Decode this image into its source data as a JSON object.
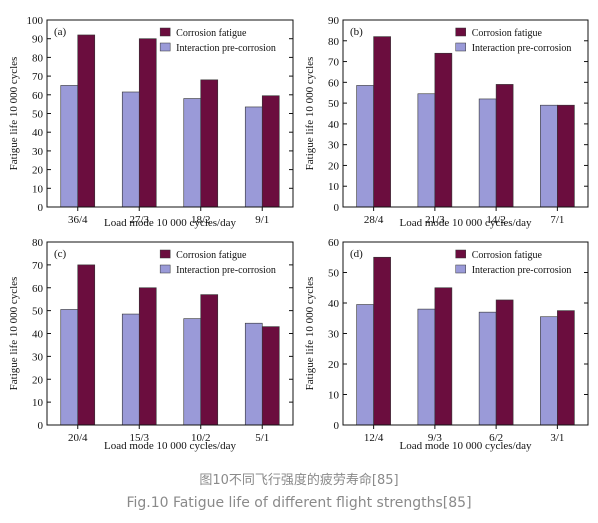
{
  "caption_cn": "图10不同飞行强度的疲劳寿命[85]",
  "caption_en": "Fig.10 Fatigue life of different flight strengths[85]",
  "colors": {
    "corrosion_fatigue": "#6b0d3e",
    "interaction_pre_corrosion": "#9a9ad8"
  },
  "chart_data": [
    {
      "type": "bar",
      "panel": "(a)",
      "xlabel": "Load mode 10 000 cycles/day",
      "ylabel": "Fatigue life 10 000 cycles",
      "ylim": [
        0,
        100
      ],
      "yticks": [
        0,
        10,
        20,
        30,
        40,
        50,
        60,
        70,
        80,
        90,
        100
      ],
      "categories": [
        "36/4",
        "27/3",
        "18/2",
        "9/1"
      ],
      "legend_position": "top-right",
      "series": [
        {
          "name": "Interaction pre-corrosion",
          "values": [
            65,
            61.5,
            58,
            53.5
          ]
        },
        {
          "name": "Corrosion fatigue",
          "values": [
            92,
            90,
            68,
            59.5
          ]
        }
      ]
    },
    {
      "type": "bar",
      "panel": "(b)",
      "xlabel": "Load mode 10 000 cycles/day",
      "ylabel": "Fatigue life 10 000 cycles",
      "ylim": [
        0,
        90
      ],
      "yticks": [
        0,
        10,
        20,
        30,
        40,
        50,
        60,
        70,
        80,
        90
      ],
      "categories": [
        "28/4",
        "21/3",
        "14/2",
        "7/1"
      ],
      "legend_position": "top-right",
      "series": [
        {
          "name": "Interaction pre-corrosion",
          "values": [
            58.5,
            54.5,
            52,
            49
          ]
        },
        {
          "name": "Corrosion fatigue",
          "values": [
            82,
            74,
            59,
            49
          ]
        }
      ]
    },
    {
      "type": "bar",
      "panel": "(c)",
      "xlabel": "Load mode 10 000 cycles/day",
      "ylabel": "Fatigue life 10 000 cycles",
      "ylim": [
        0,
        80
      ],
      "yticks": [
        0,
        10,
        20,
        30,
        40,
        50,
        60,
        70,
        80
      ],
      "categories": [
        "20/4",
        "15/3",
        "10/2",
        "5/1"
      ],
      "legend_position": "top-right",
      "series": [
        {
          "name": "Interaction pre-corrosion",
          "values": [
            50.5,
            48.5,
            46.5,
            44.5
          ]
        },
        {
          "name": "Corrosion fatigue",
          "values": [
            70,
            60,
            57,
            43
          ]
        }
      ]
    },
    {
      "type": "bar",
      "panel": "(d)",
      "xlabel": "Load mode 10 000 cycles/day",
      "ylabel": "Fatigue life 10 000 cycles",
      "ylim": [
        0,
        60
      ],
      "yticks": [
        0,
        10,
        20,
        30,
        40,
        50,
        60
      ],
      "categories": [
        "12/4",
        "9/3",
        "6/2",
        "3/1"
      ],
      "legend_position": "top-right",
      "series": [
        {
          "name": "Interaction pre-corrosion",
          "values": [
            39.5,
            38,
            37,
            35.5
          ]
        },
        {
          "name": "Corrosion fatigue",
          "values": [
            55,
            45,
            41,
            37.5
          ]
        }
      ]
    }
  ]
}
